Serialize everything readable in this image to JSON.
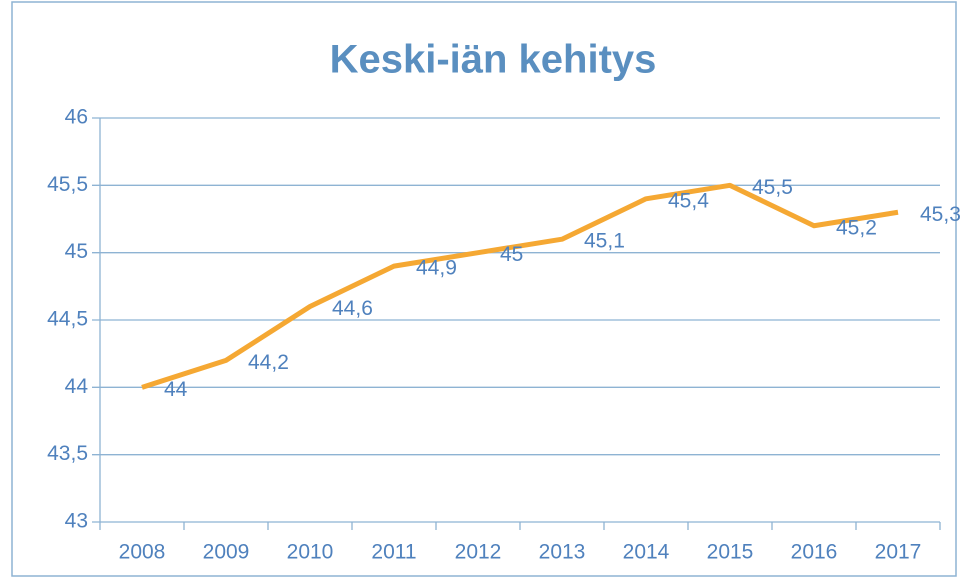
{
  "chart_data": {
    "type": "line",
    "title": "Keski-iän kehitys",
    "categories": [
      "2008",
      "2009",
      "2010",
      "2011",
      "2012",
      "2013",
      "2014",
      "2015",
      "2016",
      "2017"
    ],
    "values": [
      44,
      44.2,
      44.6,
      44.9,
      45,
      45.1,
      45.4,
      45.5,
      45.2,
      45.3
    ],
    "value_labels": [
      "44",
      "44,2",
      "44,6",
      "44,9",
      "45",
      "45,1",
      "45,4",
      "45,5",
      "45,2",
      "45,3"
    ],
    "color": "#f5a833",
    "ylim": [
      43,
      46
    ],
    "yticks": [
      43,
      {
        "value": 43.5,
        "label": "43,5"
      },
      44,
      {
        "value": 44.5,
        "label": "44,5"
      },
      45,
      {
        "value": 45.5,
        "label": "45,5"
      },
      46
    ],
    "grid": true
  }
}
